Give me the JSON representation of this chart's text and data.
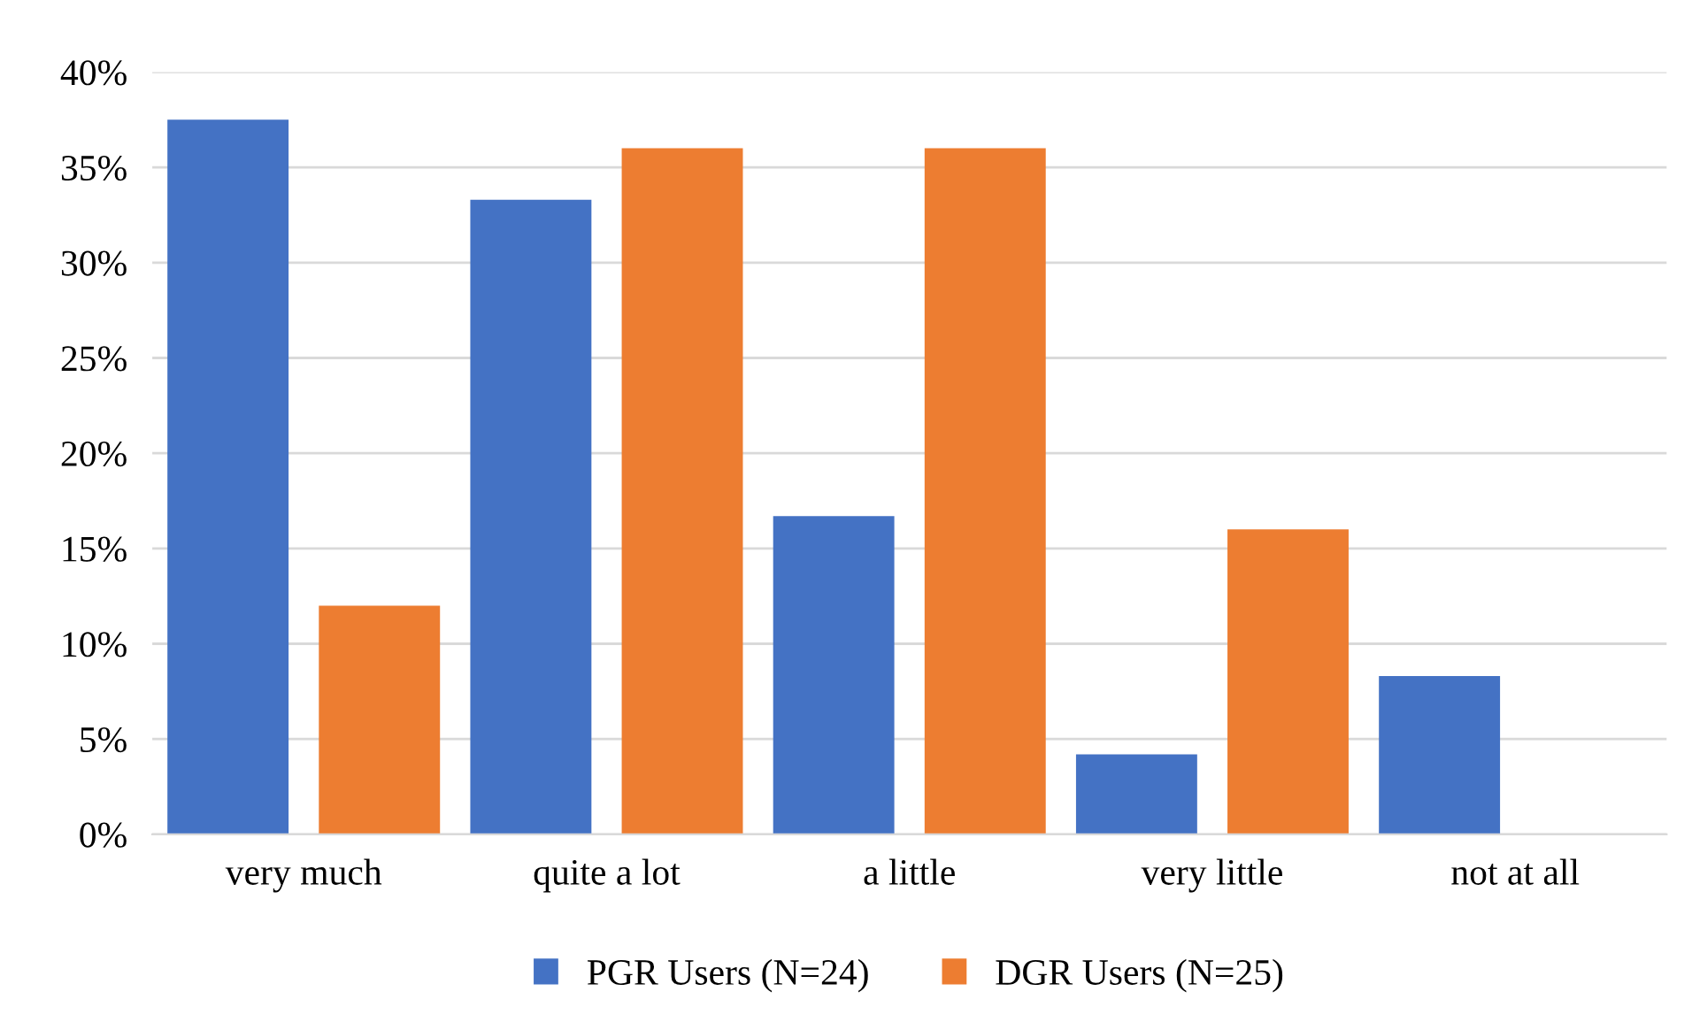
{
  "chart_data": {
    "type": "bar",
    "categories": [
      "very much",
      "quite a lot",
      "a little",
      "very little",
      "not at all"
    ],
    "series": [
      {
        "name": "PGR Users (N=24)",
        "color": "#4472c4",
        "values": [
          37.5,
          33.3,
          16.7,
          4.2,
          8.3
        ]
      },
      {
        "name": "DGR Users (N=25)",
        "color": "#ed7d31",
        "values": [
          12,
          36,
          36,
          16,
          0
        ]
      }
    ],
    "ylim": [
      0,
      40
    ],
    "yticks": [
      {
        "value": 0,
        "label": "0%"
      },
      {
        "value": 5,
        "label": "5%"
      },
      {
        "value": 10,
        "label": "10%"
      },
      {
        "value": 15,
        "label": "15%"
      },
      {
        "value": 20,
        "label": "20%"
      },
      {
        "value": 25,
        "label": "25%"
      },
      {
        "value": 30,
        "label": "30%"
      },
      {
        "value": 35,
        "label": "35%"
      },
      {
        "value": 40,
        "label": "40%"
      }
    ],
    "grid": "y",
    "legend": "bottom"
  }
}
